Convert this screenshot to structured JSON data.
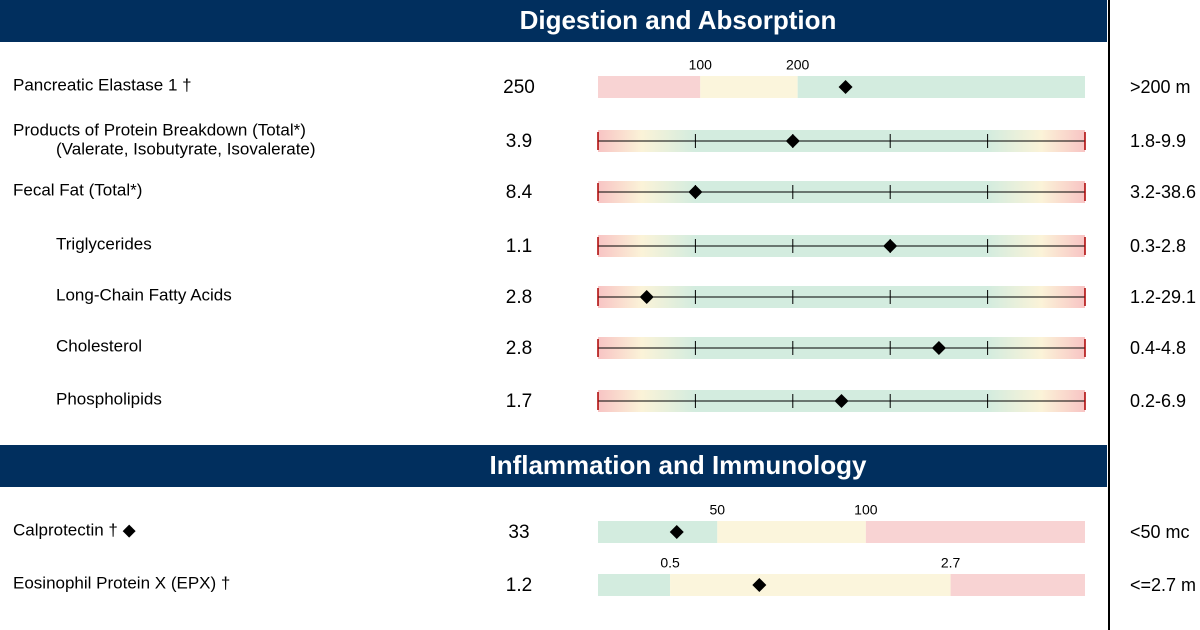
{
  "sections": [
    {
      "title": "Digestion and Absorption",
      "rows": [
        {
          "name": "Pancreatic Elastase 1 †",
          "value": 250,
          "reference": ">200 m",
          "gauge": {
            "type": "zones",
            "xlim": [
              0,
              500
            ],
            "xticks": [
              100,
              200
            ],
            "zones": [
              "#f8d3d3",
              "#fbf5dc",
              "#d3ecdf"
            ]
          }
        },
        {
          "name": "Products of Protein Breakdown (Total*)",
          "note": "(Valerate, Isobutyrate, Isovalerate)",
          "value": 3.9,
          "reference": "1.8-9.9",
          "gauge": {
            "type": "quintile",
            "xlim": [
              0,
              100
            ],
            "xticks": [
              0,
              20,
              40,
              60,
              80,
              100
            ],
            "percentile": 40
          }
        },
        {
          "name": "Fecal Fat (Total*)",
          "value": 8.4,
          "reference": "3.2-38.6",
          "gauge": {
            "type": "quintile",
            "xlim": [
              0,
              100
            ],
            "xticks": [
              0,
              20,
              40,
              60,
              80,
              100
            ],
            "percentile": 20
          }
        },
        {
          "name": "Triglycerides",
          "indent": true,
          "value": 1.1,
          "reference": "0.3-2.8",
          "gauge": {
            "type": "quintile",
            "xlim": [
              0,
              100
            ],
            "xticks": [
              0,
              20,
              40,
              60,
              80,
              100
            ],
            "percentile": 60
          }
        },
        {
          "name": "Long-Chain Fatty Acids",
          "indent": true,
          "value": 2.8,
          "reference": "1.2-29.1",
          "gauge": {
            "type": "quintile",
            "xlim": [
              0,
              100
            ],
            "xticks": [
              0,
              20,
              40,
              60,
              80,
              100
            ],
            "percentile": 10
          }
        },
        {
          "name": "Cholesterol",
          "indent": true,
          "value": 2.8,
          "reference": "0.4-4.8",
          "gauge": {
            "type": "quintile",
            "xlim": [
              0,
              100
            ],
            "xticks": [
              0,
              20,
              40,
              60,
              80,
              100
            ],
            "percentile": 70
          }
        },
        {
          "name": "Phospholipids",
          "indent": true,
          "value": 1.7,
          "reference": "0.2-6.9",
          "gauge": {
            "type": "quintile",
            "xlim": [
              0,
              100
            ],
            "xticks": [
              0,
              20,
              40,
              60,
              80,
              100
            ],
            "percentile": 50
          }
        }
      ]
    },
    {
      "title": "Inflammation and Immunology",
      "rows": [
        {
          "name": "Calprotectin † ◆",
          "value": 33,
          "reference": "<50 mc",
          "gauge": {
            "type": "zones",
            "xlim": [
              0,
              200
            ],
            "xticks": [
              50,
              100
            ],
            "zones": [
              "#d3ecdf",
              "#fbf5dc",
              "#f8d3d3"
            ]
          }
        },
        {
          "name": "Eosinophil Protein X (EPX) †",
          "value": 1.2,
          "reference": "<=2.7 m",
          "gauge": {
            "type": "zones",
            "xlim": [
              0,
              5
            ],
            "xticks": [
              0.5,
              2.7
            ],
            "zones": [
              "#d3ecdf",
              "#fbf5dc",
              "#f8d3d3"
            ]
          }
        }
      ]
    }
  ]
}
